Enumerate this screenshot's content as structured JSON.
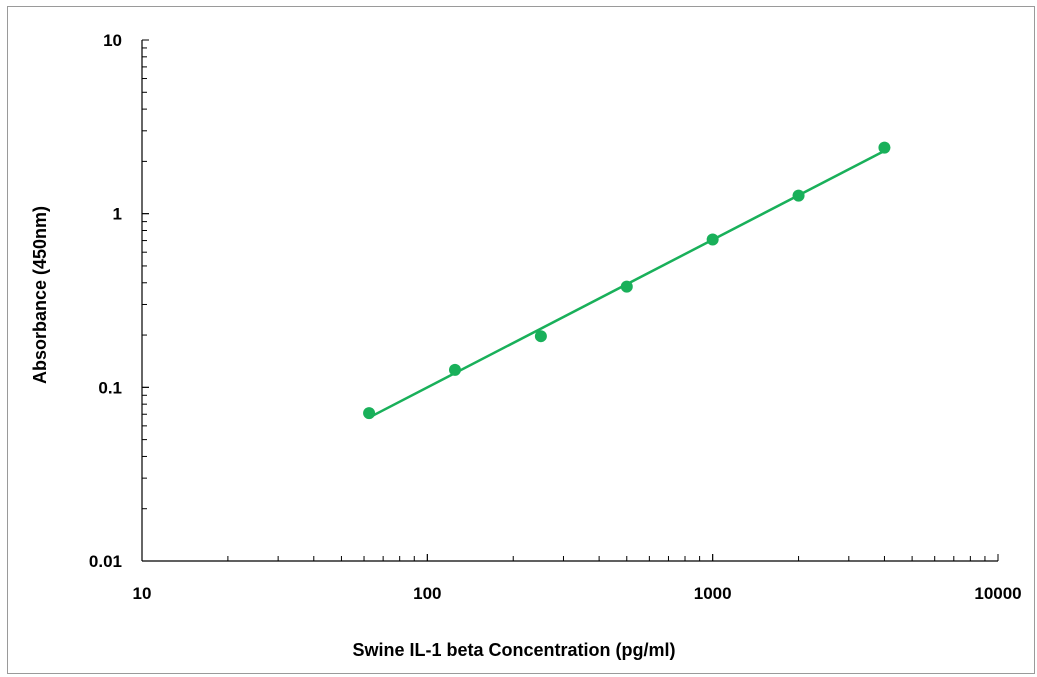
{
  "chart_data": {
    "type": "scatter",
    "xlabel": "Swine IL-1 beta Concentration (pg/ml)",
    "ylabel": "Absorbance (450nm)",
    "x_scale": "log",
    "y_scale": "log",
    "xlim": [
      10,
      10000
    ],
    "ylim": [
      0.01,
      10
    ],
    "x_ticks": [
      "10",
      "100",
      "1000",
      "10000"
    ],
    "y_ticks": [
      "10",
      "1",
      "0.1",
      "0.01"
    ],
    "grid": false,
    "legend": "none",
    "series": [
      {
        "points": [
          {
            "x": 62.5,
            "y": 0.071
          },
          {
            "x": 125,
            "y": 0.126
          },
          {
            "x": 250,
            "y": 0.197
          },
          {
            "x": 500,
            "y": 0.38
          },
          {
            "x": 1000,
            "y": 0.71
          },
          {
            "x": 2000,
            "y": 1.27
          },
          {
            "x": 4000,
            "y": 2.4
          }
        ],
        "fit_line": {
          "type": "power",
          "x_range": [
            62.5,
            4000
          ],
          "y_range": [
            0.067,
            2.3
          ]
        }
      }
    ],
    "colors": {
      "series": "#19b05a",
      "axis": "#000000",
      "frame": "#9a9a9a"
    }
  }
}
